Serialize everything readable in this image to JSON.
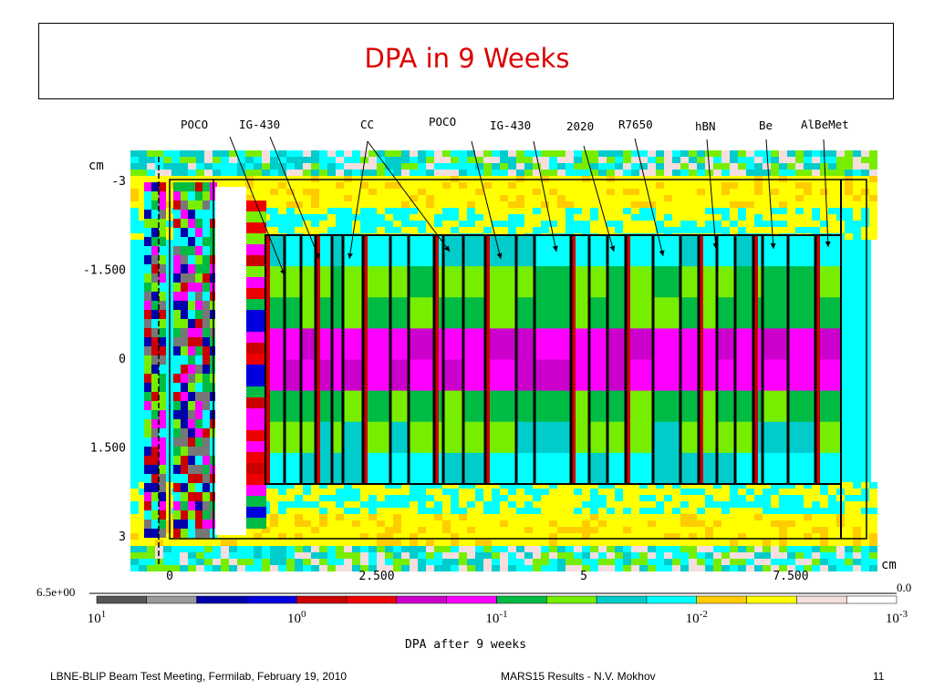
{
  "slide": {
    "title": "DPA in 9 Weeks",
    "footer_left": "LBNE-BLIP Beam Test Meeting, Fermilab, February 19, 2010",
    "footer_center": "MARS15 Results -  N.V. Mokhov",
    "page_number": "11"
  },
  "chart_data": {
    "type": "heatmap",
    "title": "",
    "xlabel": "cm",
    "ylabel": "cm",
    "x_ticks": [
      0,
      2.5,
      5,
      7.5
    ],
    "x_tick_labels": [
      "0",
      "2.500",
      "5",
      "7.500"
    ],
    "y_ticks": [
      -3,
      -1.5,
      0,
      1.5,
      3
    ],
    "y_tick_labels": [
      "-3",
      "-1.500",
      "0",
      "1.500",
      "3"
    ],
    "xlim": [
      -0.25,
      8.5
    ],
    "ylim": [
      -3.2,
      3.3
    ],
    "material_labels": [
      "POCO",
      "IG-430",
      "CC",
      "POCO",
      "IG-430",
      "2020",
      "R7650",
      "hBN",
      "Be",
      "AlBeMet"
    ],
    "colorbar": {
      "label": "DPA after 9 weeks",
      "max_label": "6.5e+00",
      "min_label": "0.0",
      "decade_labels": [
        {
          "base": "10",
          "exp": "1"
        },
        {
          "base": "10",
          "exp": "0"
        },
        {
          "base": "10",
          "exp": "-1"
        },
        {
          "base": "10",
          "exp": "-2"
        },
        {
          "base": "10",
          "exp": "-3"
        }
      ],
      "colors": [
        "#555555",
        "#999999",
        "#0000aa",
        "#0000dd",
        "#cc0000",
        "#ee0000",
        "#cc00cc",
        "#ff00ff",
        "#00bb44",
        "#77ee00",
        "#00cccc",
        "#00ffff",
        "#ffcc00",
        "#ffff00",
        "#f5dede",
        "#ffffff"
      ]
    }
  }
}
